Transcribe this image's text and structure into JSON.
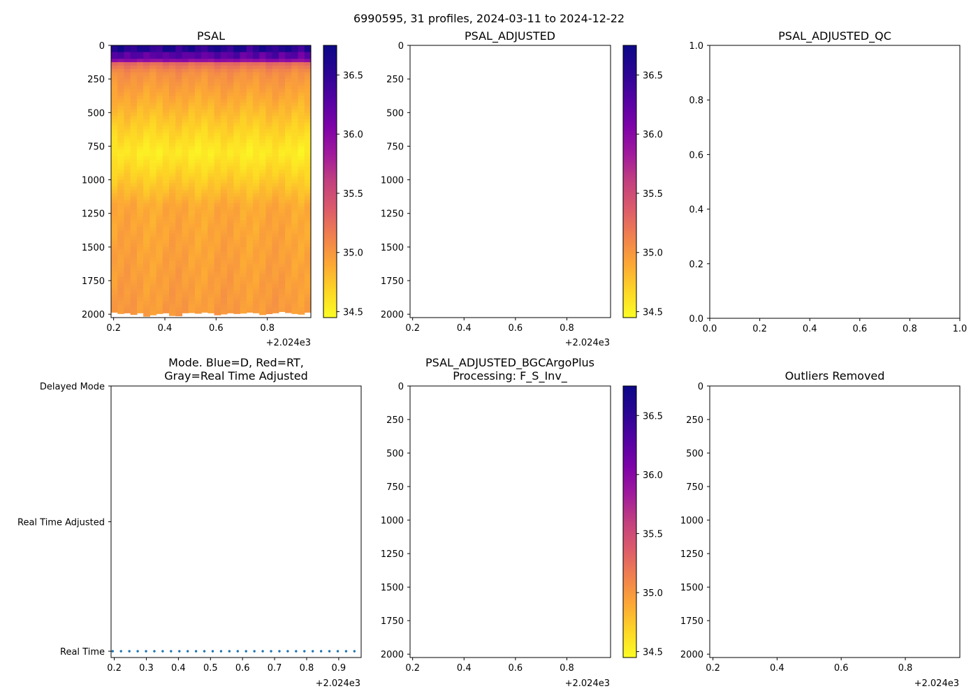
{
  "figure_title": "6990595, 31 profiles, 2024-03-11 to 2024-12-22",
  "colors": {
    "mode_marker": "#1f77b4",
    "colormap": [
      "#fcfd24",
      "#fdd525",
      "#fca636",
      "#f0804f",
      "#dc5b6b",
      "#c2407f",
      "#a01a9c",
      "#7e03a8",
      "#5402a3",
      "#2a0593",
      "#0d0887"
    ],
    "missing_fill": "#ffffff"
  },
  "chart_data": [
    {
      "id": "psal",
      "type": "heatmap",
      "title": "PSAL",
      "x_offset_label": "+2.024e3",
      "xticks": [
        "0.2",
        "0.4",
        "0.6",
        "0.8"
      ],
      "xlim": [
        0.19,
        0.97
      ],
      "yticks": [
        "0",
        "250",
        "500",
        "750",
        "1000",
        "1250",
        "1500",
        "1750",
        "2000"
      ],
      "ylim": [
        2025,
        0
      ],
      "n_profiles": 31,
      "profile_max_depth": [
        1985,
        1995,
        1990,
        2002,
        1990,
        2015,
        2005,
        1995,
        1990,
        2010,
        2012,
        1990,
        1988,
        1993,
        1985,
        1990,
        2005,
        1998,
        1990,
        1995,
        1992,
        1985,
        1990,
        2003,
        1996,
        1990,
        1980,
        1988,
        1995,
        2000,
        1985
      ],
      "colorbar": {
        "range": [
          34.45,
          36.75
        ],
        "ticks": [
          "34.5",
          "35.0",
          "35.5",
          "36.0",
          "36.5"
        ]
      }
    },
    {
      "id": "psal_adjusted",
      "type": "heatmap",
      "title": "PSAL_ADJUSTED",
      "x_offset_label": "+2.024e3",
      "xticks": [
        "0.2",
        "0.4",
        "0.6",
        "0.8"
      ],
      "xlim": [
        0.19,
        0.97
      ],
      "yticks": [
        "0",
        "250",
        "500",
        "750",
        "1000",
        "1250",
        "1500",
        "1750",
        "2000"
      ],
      "ylim": [
        2025,
        0
      ],
      "colorbar": {
        "range": [
          34.45,
          36.75
        ],
        "ticks": [
          "34.5",
          "35.0",
          "35.5",
          "36.0",
          "36.5"
        ]
      }
    },
    {
      "id": "psal_adjusted_qc",
      "type": "line",
      "title": "PSAL_ADJUSTED_QC",
      "xticks": [
        "0.0",
        "0.2",
        "0.4",
        "0.6",
        "0.8",
        "1.0"
      ],
      "yticks": [
        "0.0",
        "0.2",
        "0.4",
        "0.6",
        "0.8",
        "1.0"
      ],
      "xlim": [
        0,
        1
      ],
      "ylim": [
        0,
        1
      ]
    },
    {
      "id": "mode",
      "type": "scatter",
      "title_lines": [
        "Mode. Blue=D, Red=RT,",
        "Gray=Real Time Adjusted"
      ],
      "x_offset_label": "+2.024e3",
      "xticks": [
        "0.2",
        "0.3",
        "0.4",
        "0.5",
        "0.6",
        "0.7",
        "0.8",
        "0.9"
      ],
      "xlim": [
        0.19,
        0.97
      ],
      "ylabels": [
        "Delayed Mode",
        "Real Time Adjusted",
        "Real Time"
      ],
      "points_x": [
        0.195,
        0.221,
        0.247,
        0.273,
        0.299,
        0.325,
        0.351,
        0.377,
        0.403,
        0.429,
        0.455,
        0.481,
        0.507,
        0.533,
        0.559,
        0.585,
        0.611,
        0.637,
        0.663,
        0.689,
        0.715,
        0.741,
        0.767,
        0.793,
        0.819,
        0.845,
        0.871,
        0.897,
        0.923,
        0.949,
        0.975
      ],
      "points_y": "Real Time"
    },
    {
      "id": "psal_bgc",
      "type": "heatmap",
      "title_lines": [
        "PSAL_ADJUSTED_BGCArgoPlus",
        "Processing: F_S_Inv_"
      ],
      "x_offset_label": "+2.024e3",
      "xticks": [
        "0.2",
        "0.4",
        "0.6",
        "0.8"
      ],
      "xlim": [
        0.19,
        0.97
      ],
      "yticks": [
        "0",
        "250",
        "500",
        "750",
        "1000",
        "1250",
        "1500",
        "1750",
        "2000"
      ],
      "ylim": [
        2025,
        0
      ],
      "colorbar": {
        "range": [
          34.45,
          36.75
        ],
        "ticks": [
          "34.5",
          "35.0",
          "35.5",
          "36.0",
          "36.5"
        ]
      }
    },
    {
      "id": "outliers",
      "type": "heatmap",
      "title": "Outliers Removed",
      "x_offset_label": "+2.024e3",
      "xticks": [
        "0.2",
        "0.4",
        "0.6",
        "0.8"
      ],
      "xlim": [
        0.19,
        0.97
      ],
      "yticks": [
        "0",
        "250",
        "500",
        "750",
        "1000",
        "1250",
        "1500",
        "1750",
        "2000"
      ],
      "ylim": [
        2025,
        0
      ]
    }
  ]
}
